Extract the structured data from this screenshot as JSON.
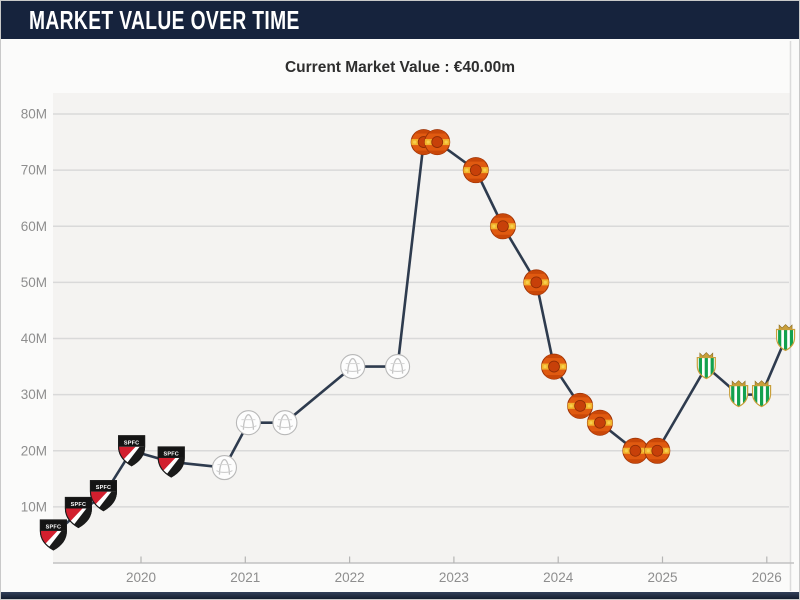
{
  "header": {
    "title": "MARKET VALUE OVER TIME",
    "bg_color": "#16233d",
    "text_color": "#ffffff"
  },
  "subtitle": {
    "text": "Current Market Value : €40.00m"
  },
  "chart_data": {
    "type": "line",
    "title": "Current Market Value : €40.00m",
    "unit": "€m",
    "current_value": "€40.00m",
    "grid": true,
    "legend": "none",
    "ylim": [
      0,
      85
    ],
    "xlim": [
      2019.2,
      2026.2
    ],
    "yticks": [
      "10M",
      "20M",
      "30M",
      "40M",
      "50M",
      "60M",
      "70M",
      "80M"
    ],
    "xticks": [
      "2020",
      "2021",
      "2022",
      "2023",
      "2024",
      "2025",
      "2026"
    ],
    "line_color": "#2e3b4e",
    "grid_color": "#d9d9d9",
    "plot_bg": "#f4f3f1",
    "axis_color": "#c2c2c2",
    "tick_label_color": "#8e8e8e",
    "clubs": {
      "spfc": {
        "icon": "spfc-crest-icon",
        "label": "SPFC",
        "colors": [
          "#d21f2e",
          "#1a1a1a",
          "#ffffff"
        ]
      },
      "ajax": {
        "icon": "ajax-crest-icon",
        "label": "",
        "colors": [
          "#ffffff",
          "#bfbfbf"
        ]
      },
      "manutd": {
        "icon": "manutd-crest-icon",
        "label": "",
        "colors": [
          "#e05a10",
          "#f2b32c",
          "#c74009"
        ]
      },
      "betis": {
        "icon": "betis-crest-icon",
        "label": "",
        "colors": [
          "#12a14e",
          "#c99f3a",
          "#ffffff"
        ]
      }
    },
    "series": [
      {
        "name": "market_value",
        "points": [
          {
            "x": 2019.16,
            "y": 5,
            "club": "spfc"
          },
          {
            "x": 2019.4,
            "y": 9,
            "club": "spfc"
          },
          {
            "x": 2019.64,
            "y": 12,
            "club": "spfc"
          },
          {
            "x": 2019.91,
            "y": 20,
            "club": "spfc"
          },
          {
            "x": 2020.29,
            "y": 18,
            "club": "spfc"
          },
          {
            "x": 2020.8,
            "y": 17,
            "club": "ajax"
          },
          {
            "x": 2021.03,
            "y": 25,
            "club": "ajax"
          },
          {
            "x": 2021.38,
            "y": 25,
            "club": "ajax"
          },
          {
            "x": 2022.03,
            "y": 35,
            "club": "ajax"
          },
          {
            "x": 2022.46,
            "y": 35,
            "club": "ajax"
          },
          {
            "x": 2022.71,
            "y": 75,
            "club": "manutd"
          },
          {
            "x": 2022.84,
            "y": 75,
            "club": "manutd"
          },
          {
            "x": 2023.21,
            "y": 70,
            "club": "manutd"
          },
          {
            "x": 2023.47,
            "y": 60,
            "club": "manutd"
          },
          {
            "x": 2023.79,
            "y": 50,
            "club": "manutd"
          },
          {
            "x": 2023.96,
            "y": 35,
            "club": "manutd"
          },
          {
            "x": 2024.21,
            "y": 28,
            "club": "manutd"
          },
          {
            "x": 2024.4,
            "y": 25,
            "club": "manutd"
          },
          {
            "x": 2024.74,
            "y": 20,
            "club": "manutd"
          },
          {
            "x": 2024.95,
            "y": 20,
            "club": "manutd"
          },
          {
            "x": 2025.42,
            "y": 35,
            "club": "betis"
          },
          {
            "x": 2025.73,
            "y": 30,
            "club": "betis"
          },
          {
            "x": 2025.95,
            "y": 30,
            "club": "betis"
          },
          {
            "x": 2026.18,
            "y": 40,
            "club": "betis"
          }
        ]
      }
    ]
  }
}
